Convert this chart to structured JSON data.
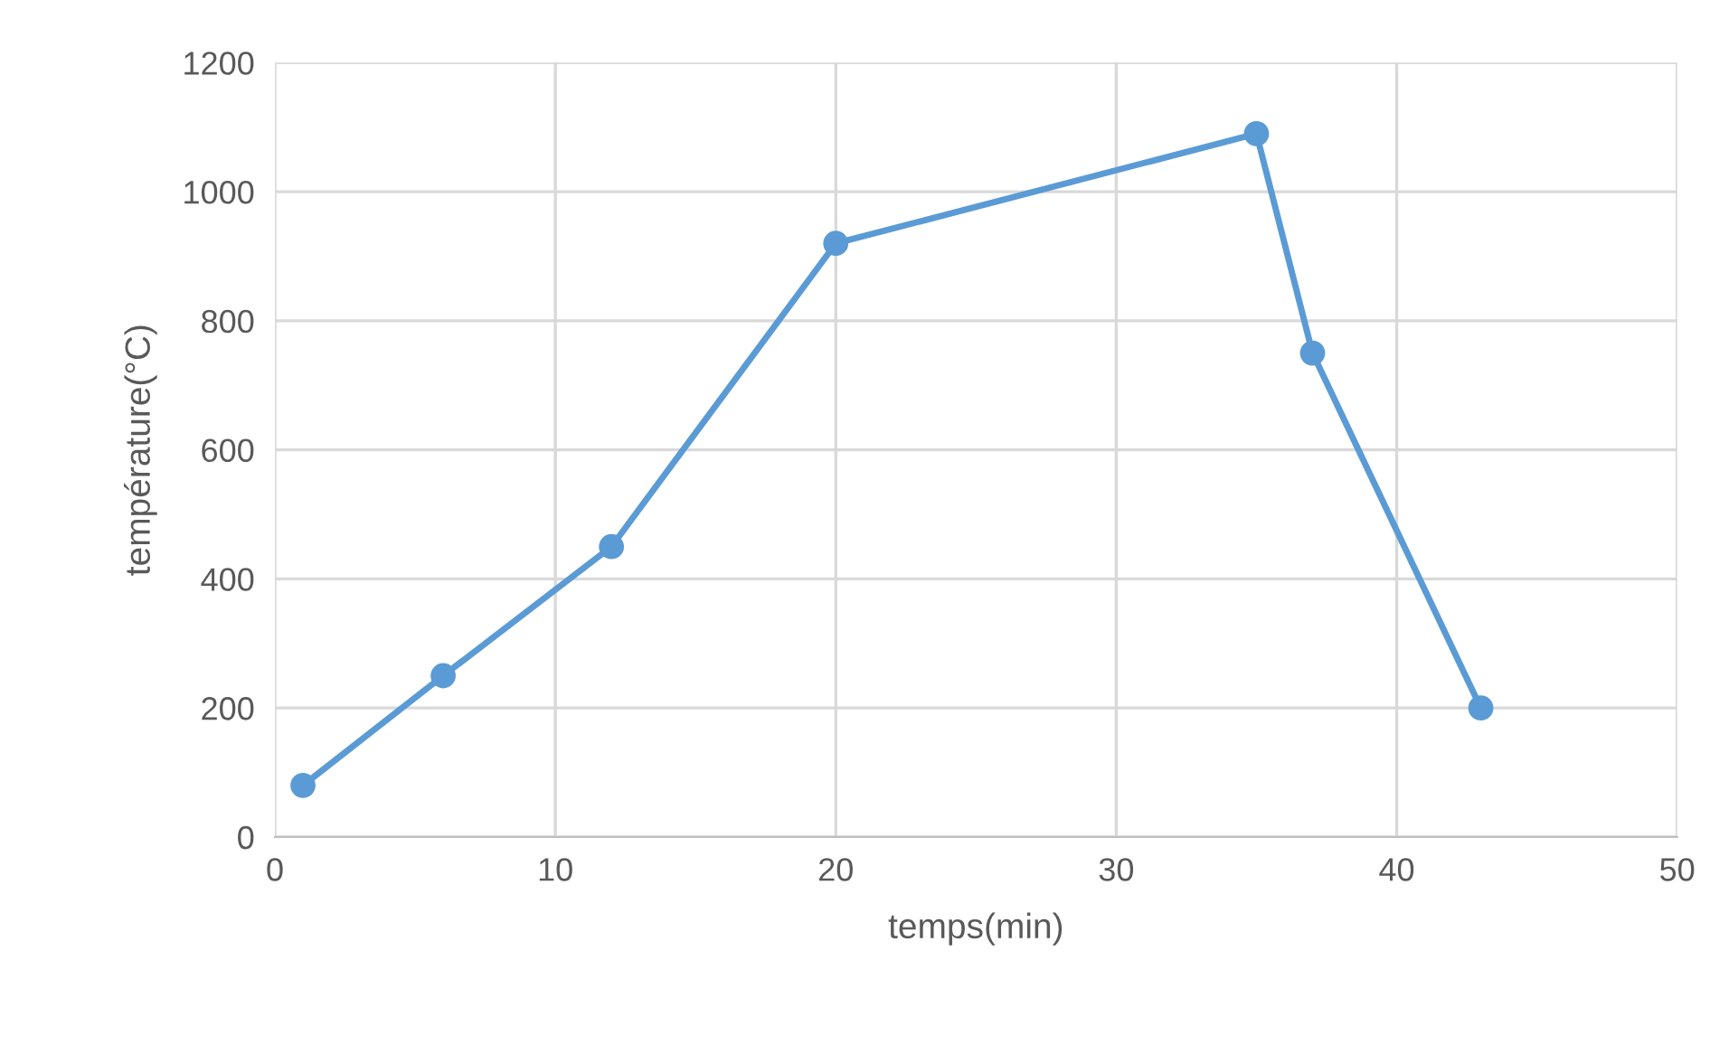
{
  "chart_data": {
    "type": "line",
    "xlabel": "temps(min)",
    "ylabel": "température(°C)",
    "x": [
      1,
      6,
      12,
      20,
      35,
      37,
      43
    ],
    "series": [
      {
        "color": "#5b9bd5",
        "values": [
          80,
          250,
          450,
          920,
          1090,
          750,
          200
        ]
      }
    ],
    "xlim": [
      0,
      50
    ],
    "xticks": [
      0,
      10,
      20,
      30,
      40,
      50
    ],
    "ylim": [
      0,
      1200
    ],
    "yticks": [
      0,
      200,
      400,
      600,
      800,
      1000,
      1200
    ],
    "grid": true,
    "marker": "circle",
    "line_style": "solid"
  }
}
